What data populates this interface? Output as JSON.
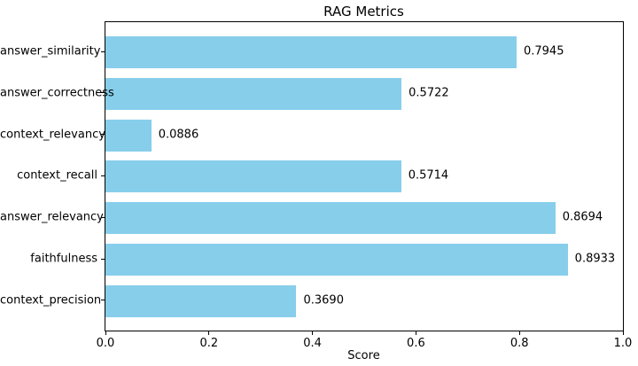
{
  "chart_data": {
    "type": "bar",
    "orientation": "horizontal",
    "title": "RAG Metrics",
    "categories": [
      "answer_similarity",
      "answer_correctness",
      "context_relevancy",
      "context_recall",
      "answer_relevancy",
      "faithfulness",
      "context_precision"
    ],
    "values": [
      0.7945,
      0.5722,
      0.0886,
      0.5714,
      0.8694,
      0.8933,
      0.369
    ],
    "value_labels": [
      "0.7945",
      "0.5722",
      "0.0886",
      "0.5714",
      "0.8694",
      "0.8933",
      "0.3690"
    ],
    "xlabel": "Score",
    "xlim": [
      0,
      1
    ],
    "xticks": [
      "0.0",
      "0.2",
      "0.4",
      "0.6",
      "0.8",
      "1.0"
    ],
    "bar_color": "#87CEEB",
    "grid": false,
    "legend": "none",
    "text_color": "#000000"
  }
}
